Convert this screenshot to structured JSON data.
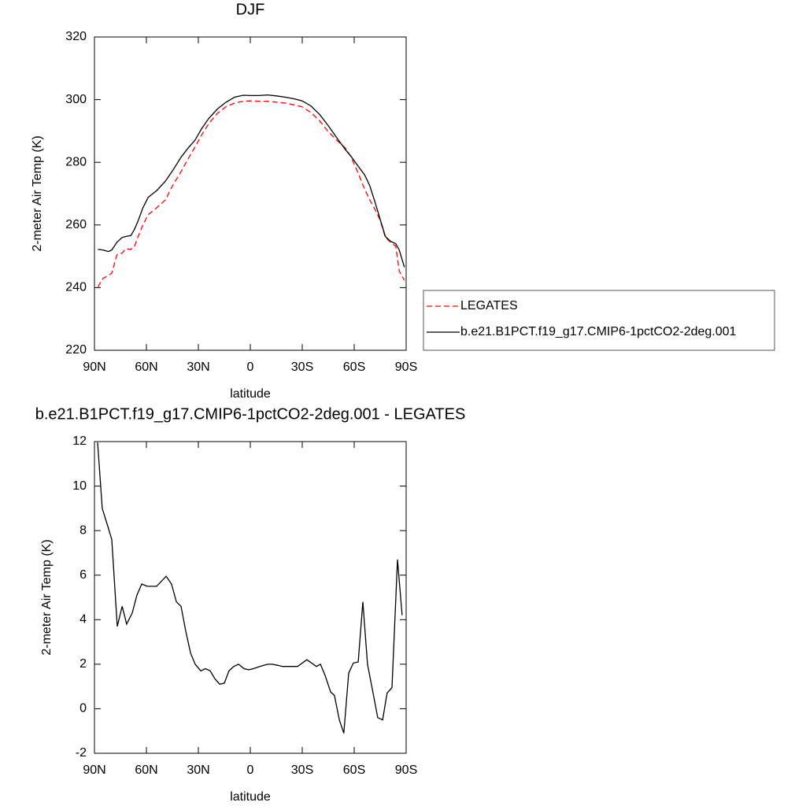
{
  "chart_data": [
    {
      "type": "line",
      "title": "DJF",
      "xlabel": "latitude",
      "ylabel": "2-meter Air Temp (K)",
      "xlim": [
        90,
        -90
      ],
      "ylim": [
        220,
        320
      ],
      "xticks": [
        {
          "value": 90,
          "label": "90N"
        },
        {
          "value": 60,
          "label": "60N"
        },
        {
          "value": 30,
          "label": "30N"
        },
        0,
        {
          "value": -30,
          "label": "30S"
        },
        {
          "value": -60,
          "label": "60S"
        },
        {
          "value": -90,
          "label": "90S"
        }
      ],
      "yticks": [
        220,
        240,
        260,
        280,
        300,
        320
      ],
      "legend": "right",
      "x": [
        88,
        85,
        82,
        80,
        77,
        74,
        72,
        69,
        67,
        65,
        62,
        59,
        54,
        49,
        45,
        40,
        36,
        32,
        28,
        24,
        19,
        14,
        9,
        4,
        0,
        -5,
        -10,
        -15,
        -20,
        -25,
        -30,
        -35,
        -40,
        -45,
        -50,
        -55,
        -58,
        -62,
        -66,
        -69,
        -72,
        -75,
        -78,
        -81,
        -84,
        -86,
        -89
      ],
      "series": [
        {
          "name": "LEGATES",
          "color": "#ff0000",
          "dashed": true,
          "values": [
            240.2,
            243.0,
            243.8,
            244.6,
            250.5,
            251.0,
            252.4,
            252.2,
            253.0,
            256.0,
            260.0,
            263.3,
            265.5,
            268.0,
            272.4,
            277.0,
            281.0,
            284.8,
            288.8,
            292.3,
            295.6,
            297.8,
            298.9,
            299.5,
            299.6,
            299.5,
            299.5,
            299.2,
            298.9,
            298.4,
            297.7,
            295.9,
            293.3,
            289.8,
            287.0,
            284.5,
            281.9,
            276.9,
            271.5,
            268.0,
            265.0,
            261.5,
            256.0,
            254.5,
            253.2,
            245.3,
            242.3
          ]
        },
        {
          "name": "b.e21.B1PCT.f19_g17.CMIP6-1pctCO2-2deg.001",
          "color": "#000000",
          "dashed": false,
          "values": [
            252.2,
            252.0,
            251.5,
            252.0,
            254.5,
            256.0,
            256.3,
            256.6,
            258.5,
            261.0,
            265.5,
            268.8,
            271.0,
            274.0,
            277.2,
            281.6,
            284.5,
            287.0,
            290.8,
            294.0,
            297.0,
            299.2,
            300.8,
            301.4,
            301.3,
            301.3,
            301.5,
            301.2,
            300.8,
            300.3,
            299.6,
            298.0,
            295.3,
            291.7,
            287.8,
            284.0,
            282.0,
            279.0,
            276.0,
            272.5,
            267.3,
            261.8,
            256.3,
            254.8,
            254.0,
            252.0,
            246.5
          ]
        }
      ]
    },
    {
      "type": "line",
      "title": "b.e21.B1PCT.f19_g17.CMIP6-1pctCO2-2deg.001 - LEGATES",
      "xlabel": "latitude",
      "ylabel": "2-meter Air Temp (K)",
      "xlim": [
        90,
        -90
      ],
      "ylim": [
        -2,
        12
      ],
      "xticks": [
        {
          "value": 90,
          "label": "90N"
        },
        {
          "value": 60,
          "label": "60N"
        },
        {
          "value": 30,
          "label": "30N"
        },
        0,
        {
          "value": -30,
          "label": "30S"
        },
        {
          "value": -60,
          "label": "60S"
        },
        {
          "value": -90,
          "label": "90S"
        }
      ],
      "yticks": [
        -2,
        0,
        2,
        4,
        6,
        8,
        10,
        12
      ],
      "color": "#000000",
      "x": [
        88.2,
        85.5,
        82.3,
        80,
        76.8,
        74,
        71.4,
        68.2,
        65.5,
        62.7,
        59.5,
        56.8,
        54.1,
        48.6,
        45.5,
        42.7,
        40,
        37.3,
        34.5,
        31.8,
        28.6,
        25.9,
        23.2,
        20.5,
        17.7,
        15,
        12.3,
        9.5,
        6.8,
        3.6,
        0.9,
        -1.8,
        -5.5,
        -10,
        -12.7,
        -15.9,
        -18.6,
        -24,
        -27.3,
        -32.7,
        -38.2,
        -40.5,
        -43.2,
        -46.4,
        -48.6,
        -51.4,
        -54,
        -56.8,
        -59.5,
        -62.3,
        -65,
        -67.7,
        -70.9,
        -73.6,
        -76.4,
        -79,
        -81.8,
        -85,
        -87.7
      ],
      "values": [
        11.96,
        9.0,
        8.2,
        7.6,
        3.7,
        4.6,
        3.8,
        4.3,
        5.1,
        5.6,
        5.5,
        5.5,
        5.5,
        5.95,
        5.6,
        4.8,
        4.6,
        3.5,
        2.5,
        2.0,
        1.7,
        1.8,
        1.7,
        1.35,
        1.1,
        1.15,
        1.7,
        1.9,
        2.0,
        1.8,
        1.75,
        1.8,
        1.9,
        2.0,
        2.0,
        1.95,
        1.9,
        1.9,
        1.9,
        2.2,
        1.9,
        2.0,
        1.5,
        0.75,
        0.6,
        -0.5,
        -1.1,
        1.6,
        2.05,
        2.1,
        4.8,
        2.0,
        0.7,
        -0.4,
        -0.5,
        0.7,
        0.95,
        6.7,
        4.2
      ]
    }
  ]
}
